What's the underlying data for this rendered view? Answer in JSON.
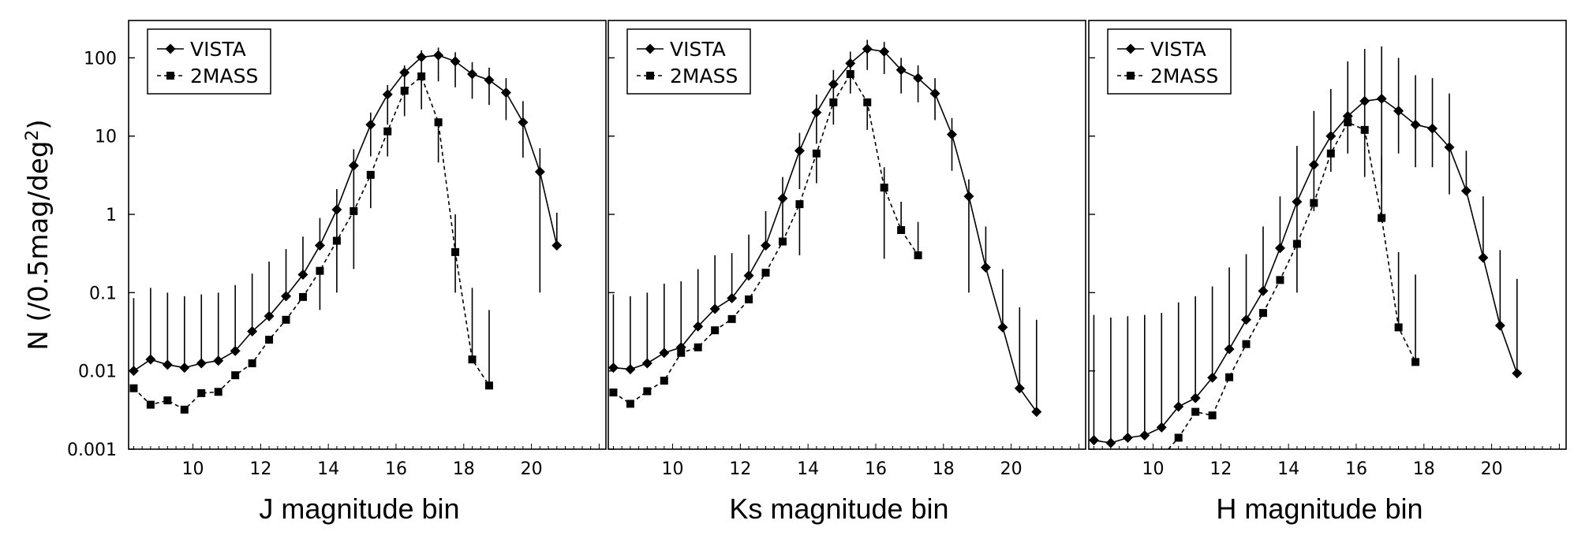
{
  "chart_data": {
    "type": "line",
    "yscale": "log",
    "ylabel": "N (/0.5mag/deg²)",
    "ylabel_base": "N (/0.5mag/deg",
    "ylabel_sup": "2",
    "ylabel_close": ")",
    "ylim": [
      0.001,
      300
    ],
    "yticks": [
      0.001,
      0.01,
      0.1,
      1,
      10,
      100
    ],
    "ytick_labels": [
      "0.001",
      "0.01",
      "0.1",
      "1",
      "10",
      "100"
    ],
    "xlim": [
      8.1,
      22.2
    ],
    "xticks": [
      10,
      12,
      14,
      16,
      18,
      20
    ],
    "xtick_labels": [
      "10",
      "12",
      "14",
      "16",
      "18",
      "20"
    ],
    "panels": [
      {
        "xlabel": "J magnitude bin",
        "series": [
          {
            "name": "VISTA",
            "marker": "diamond",
            "linestyle": "solid",
            "x": [
              8.25,
              8.75,
              9.25,
              9.75,
              10.25,
              10.75,
              11.25,
              11.75,
              12.25,
              12.75,
              13.25,
              13.75,
              14.25,
              14.75,
              15.25,
              15.75,
              16.25,
              16.75,
              17.25,
              17.75,
              18.25,
              18.75,
              19.25,
              19.75,
              20.25,
              20.75
            ],
            "y": [
              0.01,
              0.014,
              0.012,
              0.011,
              0.0125,
              0.0135,
              0.018,
              0.032,
              0.05,
              0.09,
              0.17,
              0.4,
              1.15,
              4.2,
              14,
              34,
              65,
              102,
              108,
              90,
              62,
              52,
              36,
              15,
              3.5,
              0.4
            ],
            "yerr_low": [
              null,
              null,
              null,
              null,
              null,
              null,
              null,
              null,
              null,
              null,
              null,
              null,
              0.35,
              1.2,
              5.5,
              14,
              28,
              46,
              50,
              42,
              30,
              25,
              16,
              5.3,
              0.1,
              null
            ],
            "yerr_high": [
              0.085,
              0.115,
              0.1,
              0.09,
              0.095,
              0.1,
              0.125,
              0.175,
              0.25,
              0.36,
              0.52,
              0.9,
              2.1,
              6.8,
              20,
              45,
              80,
              125,
              135,
              118,
              88,
              75,
              55,
              28,
              7,
              1.05
            ]
          },
          {
            "name": "2MASS",
            "marker": "square",
            "linestyle": "dashed",
            "x": [
              8.25,
              8.75,
              9.25,
              9.75,
              10.25,
              10.75,
              11.25,
              11.75,
              12.25,
              12.75,
              13.25,
              13.75,
              14.25,
              14.75,
              15.25,
              15.75,
              16.25,
              16.75,
              17.25,
              17.75,
              18.25,
              18.75
            ],
            "y": [
              0.006,
              0.0037,
              0.0042,
              0.0032,
              0.0052,
              0.0054,
              0.0088,
              0.0125,
              0.025,
              0.045,
              0.088,
              0.19,
              0.46,
              1.1,
              3.2,
              11.5,
              38,
              58,
              15,
              0.33,
              0.014,
              0.0065
            ],
            "yerr_low": [
              null,
              null,
              null,
              null,
              null,
              null,
              null,
              null,
              null,
              null,
              null,
              0.06,
              0.1,
              0.2,
              1.2,
              5.5,
              18,
              22,
              4.6,
              0.1,
              null,
              null
            ],
            "yerr_high": [
              null,
              null,
              null,
              null,
              null,
              null,
              null,
              null,
              null,
              null,
              null,
              null,
              null,
              null,
              null,
              null,
              null,
              null,
              null,
              1.0,
              0.115,
              0.06
            ]
          }
        ]
      },
      {
        "xlabel": "Ks magnitude bin",
        "series": [
          {
            "name": "VISTA",
            "marker": "diamond",
            "linestyle": "solid",
            "x": [
              8.25,
              8.75,
              9.25,
              9.75,
              10.25,
              10.75,
              11.25,
              11.75,
              12.25,
              12.75,
              13.25,
              13.75,
              14.25,
              14.75,
              15.25,
              15.75,
              16.25,
              16.75,
              17.25,
              17.75,
              18.25,
              18.75,
              19.25,
              19.75,
              20.25,
              20.75
            ],
            "y": [
              0.011,
              0.0105,
              0.0125,
              0.017,
              0.02,
              0.037,
              0.062,
              0.085,
              0.165,
              0.4,
              1.6,
              6.5,
              20,
              46,
              85,
              130,
              120,
              70,
              55,
              35,
              10.5,
              1.7,
              0.21,
              0.036,
              0.006,
              0.003
            ],
            "yerr_low": [
              null,
              null,
              null,
              null,
              null,
              null,
              null,
              null,
              null,
              null,
              0.4,
              2.1,
              8,
              22,
              45,
              70,
              62,
              35,
              27,
              16,
              3.6,
              0.1,
              null,
              null,
              null,
              null
            ],
            "yerr_high": [
              0.095,
              0.09,
              0.1,
              0.13,
              0.14,
              0.2,
              0.3,
              0.32,
              0.55,
              1.1,
              3.0,
              11,
              34,
              70,
              120,
              170,
              160,
              100,
              80,
              55,
              17,
              2.8,
              0.7,
              0.2,
              0.065,
              0.045
            ]
          },
          {
            "name": "2MASS",
            "marker": "square",
            "linestyle": "dashed",
            "x": [
              8.25,
              8.75,
              9.25,
              9.75,
              10.25,
              10.75,
              11.25,
              11.75,
              12.25,
              12.75,
              13.25,
              13.75,
              14.25,
              14.75,
              15.25,
              15.75,
              16.25,
              16.75,
              17.25
            ],
            "y": [
              0.0053,
              0.0038,
              0.0055,
              0.0075,
              0.017,
              0.02,
              0.033,
              0.046,
              0.082,
              0.18,
              0.45,
              1.35,
              6,
              27,
              62,
              27,
              2.2,
              0.63,
              0.3
            ],
            "yerr_low": [
              null,
              null,
              null,
              null,
              null,
              null,
              null,
              null,
              null,
              null,
              null,
              0.3,
              2.5,
              14,
              35,
              12,
              0.27,
              null,
              null
            ],
            "yerr_high": [
              null,
              null,
              null,
              null,
              null,
              null,
              null,
              null,
              null,
              null,
              null,
              null,
              null,
              null,
              null,
              null,
              4.0,
              1.45,
              0.8
            ]
          }
        ]
      },
      {
        "xlabel": "H magnitude bin",
        "series": [
          {
            "name": "VISTA",
            "marker": "diamond",
            "linestyle": "solid",
            "x": [
              8.25,
              8.75,
              9.25,
              9.75,
              10.25,
              10.75,
              11.25,
              11.75,
              12.25,
              12.75,
              13.25,
              13.75,
              14.25,
              14.75,
              15.25,
              15.75,
              16.25,
              16.75,
              17.25,
              17.75,
              18.25,
              18.75,
              19.25,
              19.75,
              20.25,
              20.75
            ],
            "y": [
              0.0013,
              0.0012,
              0.0014,
              0.0015,
              0.0019,
              0.0035,
              0.0045,
              0.0082,
              0.019,
              0.045,
              0.105,
              0.37,
              1.45,
              4.3,
              10,
              18,
              28,
              30,
              21,
              14,
              12.5,
              7.2,
              2.0,
              0.28,
              0.038,
              0.0093
            ],
            "yerr_low": [
              null,
              null,
              null,
              null,
              null,
              null,
              null,
              null,
              null,
              null,
              null,
              null,
              0.1,
              1.1,
              3.5,
              6,
              3,
              2.5,
              6,
              4,
              4,
              1.8,
              null,
              null,
              null,
              null
            ],
            "yerr_high": [
              0.052,
              0.048,
              0.05,
              0.052,
              0.055,
              0.075,
              0.09,
              0.12,
              0.21,
              0.31,
              0.7,
              1.7,
              7.5,
              21,
              40,
              90,
              130,
              140,
              100,
              60,
              55,
              35,
              6.5,
              1.7,
              0.35,
              0.15
            ]
          },
          {
            "name": "2MASS",
            "marker": "square",
            "linestyle": "dashed",
            "x": [
              10.75,
              11.25,
              11.75,
              12.25,
              12.75,
              13.25,
              13.75,
              14.25,
              14.75,
              15.25,
              15.75,
              16.25,
              16.75,
              17.25,
              17.75
            ],
            "y": [
              0.0014,
              0.003,
              0.0027,
              0.0083,
              0.022,
              0.055,
              0.145,
              0.42,
              1.4,
              6.0,
              15,
              12,
              0.9,
              0.036,
              0.013
            ],
            "yerr_low": [
              null,
              null,
              null,
              null,
              null,
              null,
              null,
              null,
              null,
              null,
              null,
              null,
              null,
              null,
              null
            ],
            "yerr_high": [
              null,
              null,
              null,
              null,
              null,
              null,
              null,
              null,
              null,
              null,
              null,
              null,
              5.5,
              0.33,
              0.17
            ]
          }
        ]
      }
    ]
  }
}
